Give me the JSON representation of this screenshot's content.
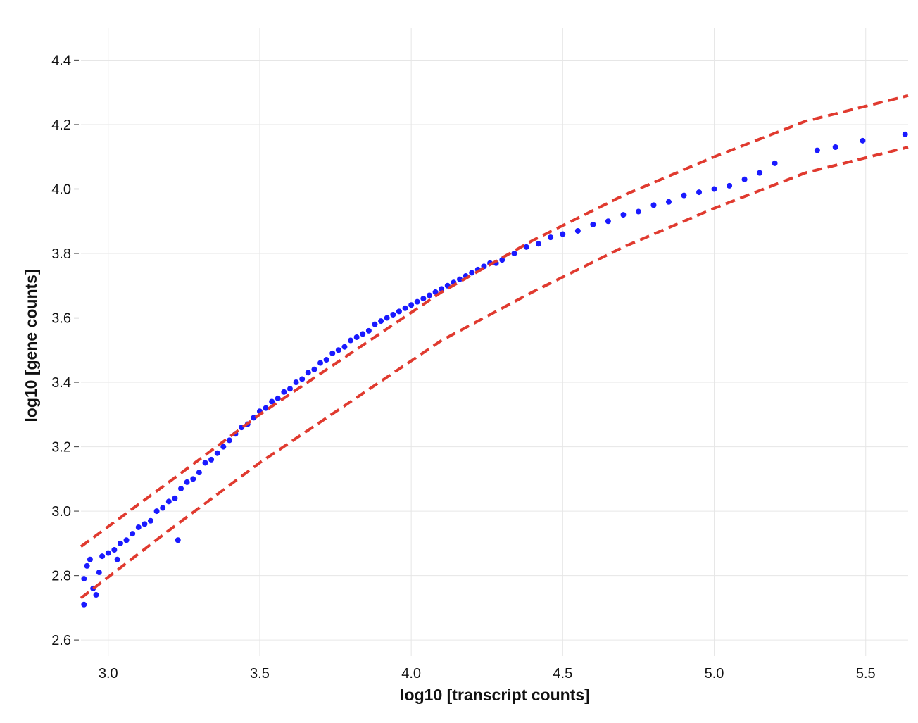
{
  "chart_data": {
    "type": "scatter",
    "title": "",
    "xlabel": "log10 [transcript counts]",
    "ylabel": "log10 [gene counts]",
    "xlim": [
      2.91,
      5.64
    ],
    "ylim": [
      2.55,
      4.46
    ],
    "x_ticks": [
      "3.0",
      "3.5",
      "4.0",
      "4.5",
      "5.0",
      "5.5"
    ],
    "y_ticks": [
      "2.6",
      "2.8",
      "3.0",
      "3.2",
      "3.4",
      "3.6",
      "3.8",
      "4.0",
      "4.2",
      "4.4"
    ],
    "grid": true,
    "legend": "none",
    "colors": {
      "points": "#1a1aff",
      "bounds": "#e03a2f",
      "grid": "#e6e6e6"
    },
    "points": [
      [
        2.92,
        2.79
      ],
      [
        2.92,
        2.71
      ],
      [
        2.93,
        2.83
      ],
      [
        2.94,
        2.85
      ],
      [
        2.95,
        2.76
      ],
      [
        2.96,
        2.74
      ],
      [
        2.98,
        2.86
      ],
      [
        2.97,
        2.81
      ],
      [
        3.0,
        2.87
      ],
      [
        3.02,
        2.88
      ],
      [
        3.04,
        2.9
      ],
      [
        3.06,
        2.91
      ],
      [
        3.03,
        2.85
      ],
      [
        3.08,
        2.93
      ],
      [
        3.1,
        2.95
      ],
      [
        3.12,
        2.96
      ],
      [
        3.14,
        2.97
      ],
      [
        3.16,
        3.0
      ],
      [
        3.18,
        3.01
      ],
      [
        3.2,
        3.03
      ],
      [
        3.22,
        3.04
      ],
      [
        3.24,
        3.07
      ],
      [
        3.23,
        2.91
      ],
      [
        3.26,
        3.09
      ],
      [
        3.28,
        3.1
      ],
      [
        3.3,
        3.12
      ],
      [
        3.32,
        3.15
      ],
      [
        3.34,
        3.16
      ],
      [
        3.36,
        3.18
      ],
      [
        3.38,
        3.2
      ],
      [
        3.4,
        3.22
      ],
      [
        3.42,
        3.24
      ],
      [
        3.44,
        3.26
      ],
      [
        3.46,
        3.27
      ],
      [
        3.48,
        3.29
      ],
      [
        3.5,
        3.31
      ],
      [
        3.52,
        3.32
      ],
      [
        3.54,
        3.34
      ],
      [
        3.56,
        3.35
      ],
      [
        3.58,
        3.37
      ],
      [
        3.6,
        3.38
      ],
      [
        3.62,
        3.4
      ],
      [
        3.64,
        3.41
      ],
      [
        3.66,
        3.43
      ],
      [
        3.68,
        3.44
      ],
      [
        3.7,
        3.46
      ],
      [
        3.72,
        3.47
      ],
      [
        3.74,
        3.49
      ],
      [
        3.76,
        3.5
      ],
      [
        3.78,
        3.51
      ],
      [
        3.8,
        3.53
      ],
      [
        3.82,
        3.54
      ],
      [
        3.84,
        3.55
      ],
      [
        3.86,
        3.56
      ],
      [
        3.88,
        3.58
      ],
      [
        3.9,
        3.59
      ],
      [
        3.92,
        3.6
      ],
      [
        3.94,
        3.61
      ],
      [
        3.96,
        3.62
      ],
      [
        3.98,
        3.63
      ],
      [
        4.0,
        3.64
      ],
      [
        4.02,
        3.65
      ],
      [
        4.04,
        3.66
      ],
      [
        4.06,
        3.67
      ],
      [
        4.08,
        3.68
      ],
      [
        4.1,
        3.69
      ],
      [
        4.12,
        3.7
      ],
      [
        4.14,
        3.71
      ],
      [
        4.16,
        3.72
      ],
      [
        4.18,
        3.73
      ],
      [
        4.2,
        3.74
      ],
      [
        4.22,
        3.75
      ],
      [
        4.24,
        3.76
      ],
      [
        4.26,
        3.77
      ],
      [
        4.28,
        3.77
      ],
      [
        4.3,
        3.78
      ],
      [
        4.34,
        3.8
      ],
      [
        4.38,
        3.82
      ],
      [
        4.42,
        3.83
      ],
      [
        4.46,
        3.85
      ],
      [
        4.5,
        3.86
      ],
      [
        4.55,
        3.87
      ],
      [
        4.6,
        3.89
      ],
      [
        4.65,
        3.9
      ],
      [
        4.7,
        3.92
      ],
      [
        4.75,
        3.93
      ],
      [
        4.8,
        3.95
      ],
      [
        4.85,
        3.96
      ],
      [
        4.9,
        3.98
      ],
      [
        4.95,
        3.99
      ],
      [
        5.0,
        4.0
      ],
      [
        5.05,
        4.01
      ],
      [
        5.1,
        4.03
      ],
      [
        5.15,
        4.05
      ],
      [
        5.2,
        4.08
      ],
      [
        5.34,
        4.12
      ],
      [
        5.4,
        4.13
      ],
      [
        5.49,
        4.15
      ],
      [
        5.63,
        4.17
      ]
    ],
    "bounds": {
      "upper": {
        "x": [
          2.91,
          3.2,
          3.5,
          3.8,
          4.1,
          4.4,
          4.7,
          5.0,
          5.3,
          5.64
        ],
        "y": [
          2.89,
          3.09,
          3.3,
          3.49,
          3.68,
          3.84,
          3.98,
          4.1,
          4.21,
          4.29
        ]
      },
      "lower": {
        "x": [
          2.91,
          3.2,
          3.5,
          3.8,
          4.1,
          4.4,
          4.7,
          5.0,
          5.3,
          5.64
        ],
        "y": [
          2.73,
          2.94,
          3.15,
          3.34,
          3.53,
          3.68,
          3.82,
          3.94,
          4.05,
          4.13
        ]
      }
    }
  }
}
